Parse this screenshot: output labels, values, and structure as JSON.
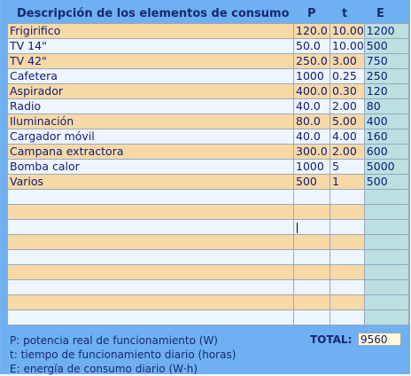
{
  "header": {
    "description": "Descripción de los elementos de consumo",
    "p": "P",
    "t": "t",
    "e": "E"
  },
  "rows": [
    {
      "desc": "Frigirifico",
      "p": "120.0",
      "t": "10.00",
      "e": "1200"
    },
    {
      "desc": "TV 14\"",
      "p": "50.0",
      "t": "10.00",
      "e": "500"
    },
    {
      "desc": "TV 42\"",
      "p": "250.0",
      "t": "3.00",
      "e": "750"
    },
    {
      "desc": "Cafetera",
      "p": "1000",
      "t": "0.25",
      "e": "250"
    },
    {
      "desc": "Aspirador",
      "p": "400.0",
      "t": "0.30",
      "e": "120"
    },
    {
      "desc": "Radio",
      "p": "40.0",
      "t": "2.00",
      "e": "80"
    },
    {
      "desc": "Iluminación",
      "p": "80.0",
      "t": "5.00",
      "e": "400"
    },
    {
      "desc": "Cargador móvil",
      "p": "40.0",
      "t": "4.00",
      "e": "160"
    },
    {
      "desc": "Campana extractora",
      "p": "300.0",
      "t": "2.00",
      "e": "600"
    },
    {
      "desc": "Bomba calor",
      "p": "1000",
      "t": "5",
      "e": "5000"
    },
    {
      "desc": "Varios",
      "p": "500",
      "t": "1",
      "e": "500"
    },
    {
      "desc": "",
      "p": "",
      "t": "",
      "e": ""
    },
    {
      "desc": "",
      "p": "",
      "t": "",
      "e": ""
    },
    {
      "desc": "",
      "p": "",
      "t": "",
      "e": ""
    },
    {
      "desc": "",
      "p": "",
      "t": "",
      "e": ""
    },
    {
      "desc": "",
      "p": "",
      "t": "",
      "e": ""
    },
    {
      "desc": "",
      "p": "",
      "t": "",
      "e": ""
    },
    {
      "desc": "",
      "p": "",
      "t": "",
      "e": ""
    },
    {
      "desc": "",
      "p": "",
      "t": "",
      "e": ""
    },
    {
      "desc": "",
      "p": "",
      "t": "",
      "e": ""
    }
  ],
  "legend": {
    "p": "P: potencia real de funcionamiento (W)",
    "t": "t: tiempo de funcionamiento diario (horas)",
    "e": "E: energía de consumo diario (W·h)"
  },
  "total": {
    "label": "TOTAL:",
    "value": "9560"
  }
}
